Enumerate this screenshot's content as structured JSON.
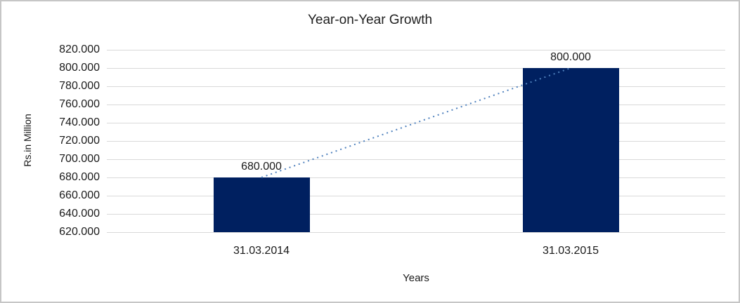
{
  "chart_data": {
    "type": "bar",
    "title": "Year-on-Year Growth",
    "categories": [
      "31.03.2014",
      "31.03.2015"
    ],
    "values": [
      680000,
      800000
    ],
    "value_labels": [
      "680.000",
      "800.000"
    ],
    "xlabel": "Years",
    "ylabel": "Rs.in Million",
    "ylim": [
      620000,
      820000
    ],
    "ytick_step": 20000,
    "ytick_labels": [
      "820.000",
      "800.000",
      "780.000",
      "760.000",
      "740.000",
      "720.000",
      "700.000",
      "680.000",
      "660.000",
      "640.000",
      "620.000"
    ],
    "grid": "horizontal",
    "legend": "none",
    "colors": {
      "bar": "#002060",
      "gridline": "#d9d9d9",
      "trendline": "#4f81bd",
      "text": "#1a1a1a",
      "frame_border": "#c6c6c6"
    },
    "trendline": {
      "type": "linear",
      "style": "dotted",
      "color": "#4f81bd",
      "from_point": "31.03.2014 top",
      "to_point": "31.03.2015 top"
    }
  }
}
